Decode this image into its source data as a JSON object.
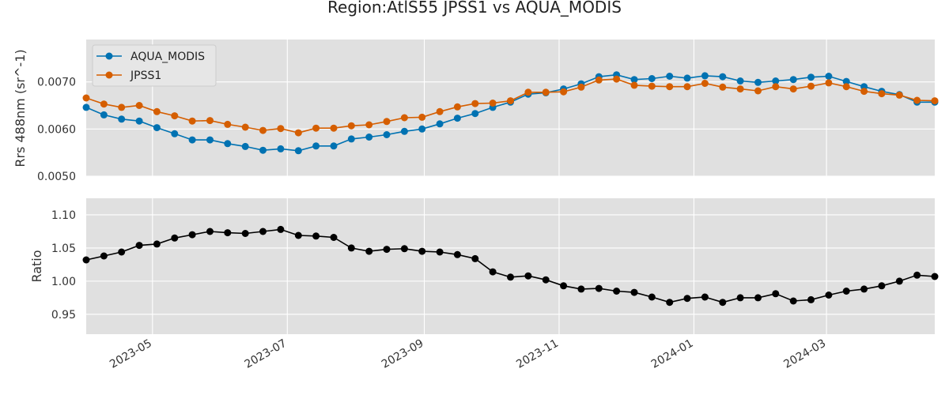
{
  "chart_data": {
    "title": "Region:AtlS55 JPSS1 vs AQUA_MODIS",
    "x": [
      "2023-04-01",
      "2023-04-09",
      "2023-04-17",
      "2023-04-25",
      "2023-05-03",
      "2023-05-11",
      "2023-05-19",
      "2023-05-27",
      "2023-06-04",
      "2023-06-12",
      "2023-06-20",
      "2023-06-28",
      "2023-07-06",
      "2023-07-14",
      "2023-07-22",
      "2023-07-30",
      "2023-08-07",
      "2023-08-15",
      "2023-08-23",
      "2023-08-31",
      "2023-09-08",
      "2023-09-16",
      "2023-09-24",
      "2023-10-02",
      "2023-10-10",
      "2023-10-18",
      "2023-10-26",
      "2023-11-03",
      "2023-11-11",
      "2023-11-19",
      "2023-11-27",
      "2023-12-05",
      "2023-12-13",
      "2023-12-21",
      "2023-12-29",
      "2024-01-06",
      "2024-01-14",
      "2024-01-22",
      "2024-01-30",
      "2024-02-07",
      "2024-02-15",
      "2024-02-23",
      "2024-03-02",
      "2024-03-10",
      "2024-03-18",
      "2024-03-26",
      "2024-04-03",
      "2024-04-11",
      "2024-04-19"
    ],
    "xlim": [
      "2023-04-01",
      "2024-04-19"
    ],
    "xticks": [
      "2023-05",
      "2023-07",
      "2023-09",
      "2023-11",
      "2024-01",
      "2024-03"
    ],
    "charts": [
      {
        "type": "line",
        "ylabel": "Rrs 488nm (sr^-1)",
        "ylim": [
          0.005,
          0.0079
        ],
        "yticks": [
          "0.0050",
          "0.0060",
          "0.0070"
        ],
        "legend_position": "upper-left",
        "grid": true,
        "series": [
          {
            "name": "AQUA_MODIS",
            "color": "#0072b2",
            "values": [
              0.00646,
              0.0063,
              0.00621,
              0.00617,
              0.00603,
              0.0059,
              0.00577,
              0.00577,
              0.00569,
              0.00563,
              0.00555,
              0.00558,
              0.00554,
              0.00564,
              0.00564,
              0.00579,
              0.00583,
              0.00588,
              0.00595,
              0.006,
              0.00611,
              0.00623,
              0.00633,
              0.00646,
              0.00657,
              0.00674,
              0.00677,
              0.00685,
              0.00696,
              0.00711,
              0.00715,
              0.00705,
              0.00707,
              0.00712,
              0.00708,
              0.00713,
              0.00711,
              0.00702,
              0.00699,
              0.00702,
              0.00705,
              0.0071,
              0.00712,
              0.00701,
              0.0069,
              0.0068,
              0.00673,
              0.00657,
              0.00657
            ]
          },
          {
            "name": "JPSS1",
            "color": "#d55e00",
            "values": [
              0.00666,
              0.00653,
              0.00646,
              0.0065,
              0.00637,
              0.00628,
              0.00617,
              0.00618,
              0.0061,
              0.00604,
              0.00597,
              0.00601,
              0.00592,
              0.00602,
              0.00602,
              0.00607,
              0.00609,
              0.00616,
              0.00624,
              0.00625,
              0.00637,
              0.00647,
              0.00654,
              0.00655,
              0.0066,
              0.00678,
              0.00678,
              0.00679,
              0.00689,
              0.00704,
              0.00706,
              0.00693,
              0.00691,
              0.0069,
              0.0069,
              0.00697,
              0.00689,
              0.00685,
              0.00681,
              0.0069,
              0.00685,
              0.00691,
              0.00698,
              0.0069,
              0.0068,
              0.00675,
              0.00672,
              0.00661,
              0.0066
            ]
          }
        ]
      },
      {
        "type": "line",
        "ylabel": "Ratio",
        "ylim": [
          0.92,
          1.125
        ],
        "yticks": [
          "0.95",
          "1.00",
          "1.05",
          "1.10"
        ],
        "grid": true,
        "series": [
          {
            "color": "#000000",
            "values": [
              1.032,
              1.038,
              1.044,
              1.054,
              1.056,
              1.065,
              1.07,
              1.075,
              1.073,
              1.072,
              1.075,
              1.078,
              1.069,
              1.068,
              1.066,
              1.05,
              1.045,
              1.048,
              1.049,
              1.045,
              1.044,
              1.04,
              1.034,
              1.014,
              1.006,
              1.008,
              1.002,
              0.993,
              0.988,
              0.989,
              0.985,
              0.983,
              0.976,
              0.968,
              0.974,
              0.976,
              0.968,
              0.975,
              0.975,
              0.981,
              0.97,
              0.972,
              0.979,
              0.985,
              0.988,
              0.993,
              1.0,
              1.009,
              1.007
            ]
          }
        ]
      }
    ]
  }
}
